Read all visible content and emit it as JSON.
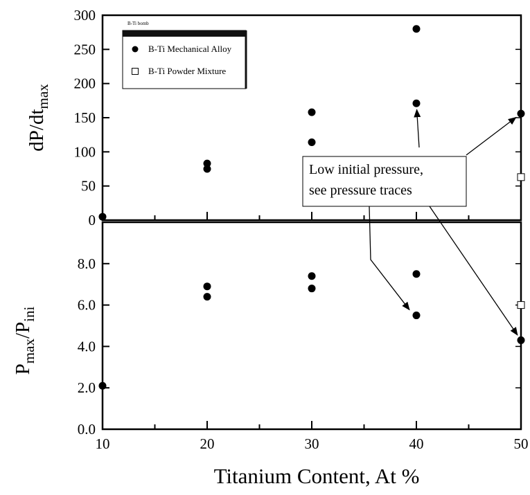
{
  "chart_data": {
    "type": "scatter",
    "xlabel": "Titanium Content, At %",
    "xlim": [
      10,
      50
    ],
    "xticks": [
      10,
      20,
      30,
      40,
      50
    ],
    "panels": [
      {
        "id": "top",
        "ylabel_main": "dP/dt",
        "ylabel_sub": "max",
        "ylim": [
          0,
          300
        ],
        "yticks": [
          0,
          50,
          100,
          150,
          200,
          250,
          300
        ],
        "yticklabels": [
          "0",
          "50",
          "100",
          "150",
          "200",
          "250",
          "300"
        ],
        "series": [
          {
            "name": "B-Ti Mechanical Alloy",
            "marker": "filled-circle",
            "x": [
              10,
              20,
              20,
              30,
              30,
              40,
              40,
              50
            ],
            "y": [
              5,
              83,
              75,
              158,
              114,
              280,
              171,
              156
            ]
          },
          {
            "name": "B-Ti  Powder Mixture",
            "marker": "open-square",
            "x": [
              50
            ],
            "y": [
              63
            ]
          }
        ]
      },
      {
        "id": "bottom",
        "ylabel_main": "P",
        "ylabel_sub1": "max",
        "ylabel_mid": "/P",
        "ylabel_sub2": "ini",
        "ylim": [
          0,
          10
        ],
        "yticks": [
          0,
          2,
          4,
          6,
          8
        ],
        "yticklabels": [
          "0.0",
          "2.0",
          "4.0",
          "6.0",
          "8.0"
        ],
        "series": [
          {
            "name": "B-Ti Mechanical Alloy",
            "marker": "filled-circle",
            "x": [
              10,
              20,
              20,
              30,
              30,
              40,
              40,
              50
            ],
            "y": [
              2.1,
              6.9,
              6.4,
              7.4,
              6.8,
              7.5,
              5.5,
              4.3
            ]
          },
          {
            "name": "B-Ti  Powder Mixture",
            "marker": "open-square",
            "x": [
              50
            ],
            "y": [
              6.0
            ]
          }
        ]
      }
    ],
    "legend": {
      "header": "B-Ti bomb",
      "entries": [
        "B-Ti Mechanical Alloy",
        "B-Ti  Powder Mixture"
      ],
      "placement": "top-left of upper panel"
    },
    "annotation": {
      "lines": [
        "Low initial pressure,",
        "see pressure traces"
      ],
      "targets": [
        {
          "panel": "top",
          "x": 40,
          "y": 171
        },
        {
          "panel": "top",
          "x": 50,
          "y": 156
        },
        {
          "panel": "bottom",
          "x": 40,
          "y": 5.5
        },
        {
          "panel": "bottom",
          "x": 50,
          "y": 4.3
        }
      ]
    }
  }
}
